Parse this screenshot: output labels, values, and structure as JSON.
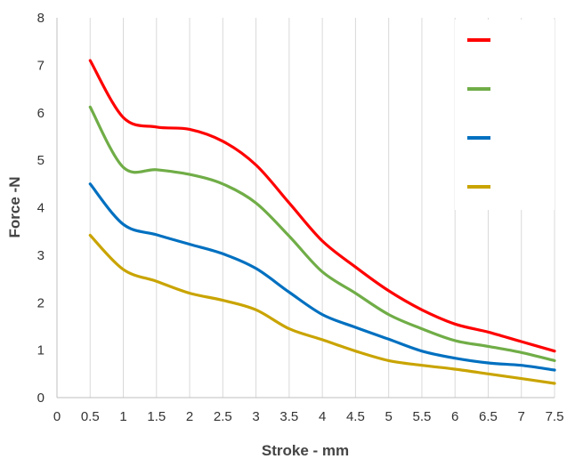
{
  "chart_data": {
    "type": "line",
    "title": "",
    "xlabel": "Stroke - mm",
    "ylabel": "Force -N",
    "xlim": [
      0,
      7.5
    ],
    "ylim": [
      0,
      8
    ],
    "x_ticks": [
      "0",
      "0.5",
      "1",
      "1.5",
      "2",
      "2.5",
      "3",
      "3.5",
      "4",
      "4.5",
      "5",
      "5.5",
      "6",
      "6.5",
      "7",
      "7.5"
    ],
    "y_ticks": [
      "0",
      "1",
      "2",
      "3",
      "4",
      "5",
      "6",
      "7",
      "8"
    ],
    "grid": "vertical",
    "legend": {
      "position": "top-right",
      "labels_printed": false
    },
    "x": [
      0.5,
      1,
      1.5,
      2,
      2.5,
      3,
      3.5,
      4,
      4.5,
      5,
      5.5,
      6,
      6.5,
      7,
      7.5
    ],
    "series": [
      {
        "color": "#ff0000",
        "values": [
          7.1,
          5.9,
          5.7,
          5.65,
          5.4,
          4.9,
          4.1,
          3.3,
          2.75,
          2.25,
          1.85,
          1.55,
          1.38,
          1.18,
          0.98
        ]
      },
      {
        "color": "#70ad47",
        "values": [
          6.12,
          4.85,
          4.8,
          4.7,
          4.5,
          4.1,
          3.4,
          2.65,
          2.2,
          1.75,
          1.45,
          1.2,
          1.08,
          0.95,
          0.78
        ]
      },
      {
        "color": "#0070c0",
        "values": [
          4.5,
          3.65,
          3.43,
          3.23,
          3.03,
          2.72,
          2.22,
          1.75,
          1.48,
          1.23,
          0.98,
          0.83,
          0.73,
          0.68,
          0.58
        ]
      },
      {
        "color": "#c9a400",
        "values": [
          3.42,
          2.7,
          2.45,
          2.2,
          2.05,
          1.85,
          1.45,
          1.22,
          0.98,
          0.78,
          0.68,
          0.6,
          0.5,
          0.4,
          0.3
        ]
      }
    ]
  }
}
